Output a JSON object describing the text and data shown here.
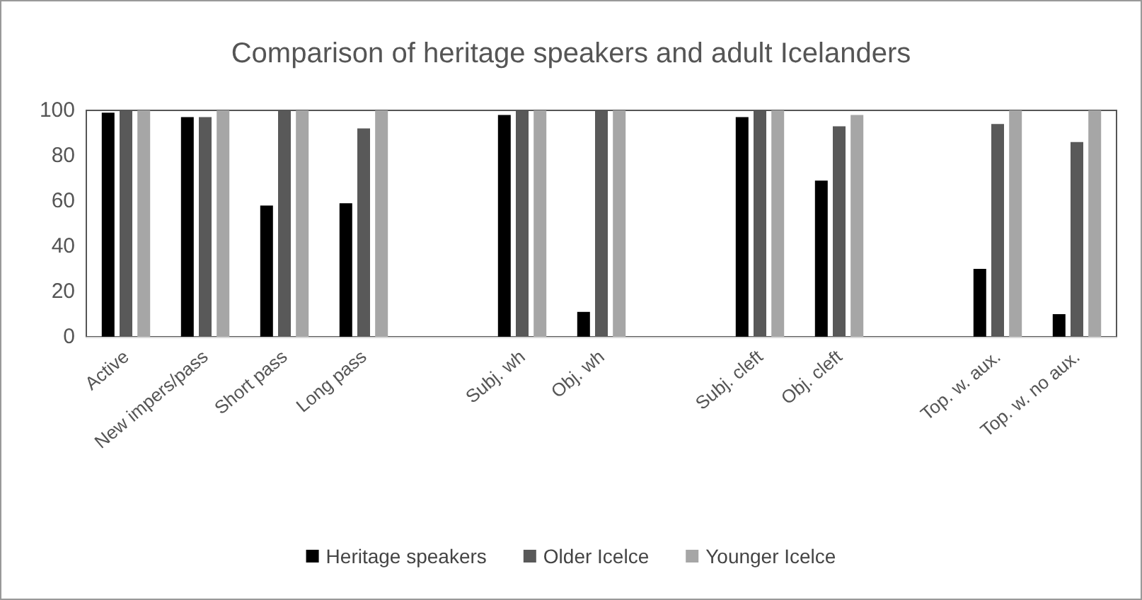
{
  "chart_data": {
    "type": "bar",
    "title": "Comparison of heritage speakers and adult Icelanders",
    "categories": [
      "Active",
      "New impers/pass",
      "Short pass",
      "Long pass",
      null,
      "Subj. wh",
      "Obj. wh",
      null,
      "Subj. cleft",
      "Obj. cleft",
      null,
      "Top. w. aux.",
      "Top. w. no aux."
    ],
    "series": [
      {
        "name": "Heritage speakers",
        "color": "#000000",
        "values": [
          99,
          97,
          58,
          59,
          null,
          98,
          11,
          null,
          97,
          69,
          null,
          30,
          10
        ]
      },
      {
        "name": "Older Icelce",
        "color": "#595959",
        "values": [
          100,
          97,
          100,
          92,
          null,
          100,
          100,
          null,
          100,
          93,
          null,
          94,
          86
        ]
      },
      {
        "name": "Younger Icelce",
        "color": "#a6a6a6",
        "values": [
          100,
          100,
          100,
          100,
          null,
          100,
          100,
          null,
          100,
          98,
          null,
          100,
          100
        ]
      }
    ],
    "ylim": [
      0,
      100
    ],
    "yticks": [
      0,
      20,
      40,
      60,
      80,
      100
    ],
    "grid": false,
    "legend": "bottom"
  }
}
